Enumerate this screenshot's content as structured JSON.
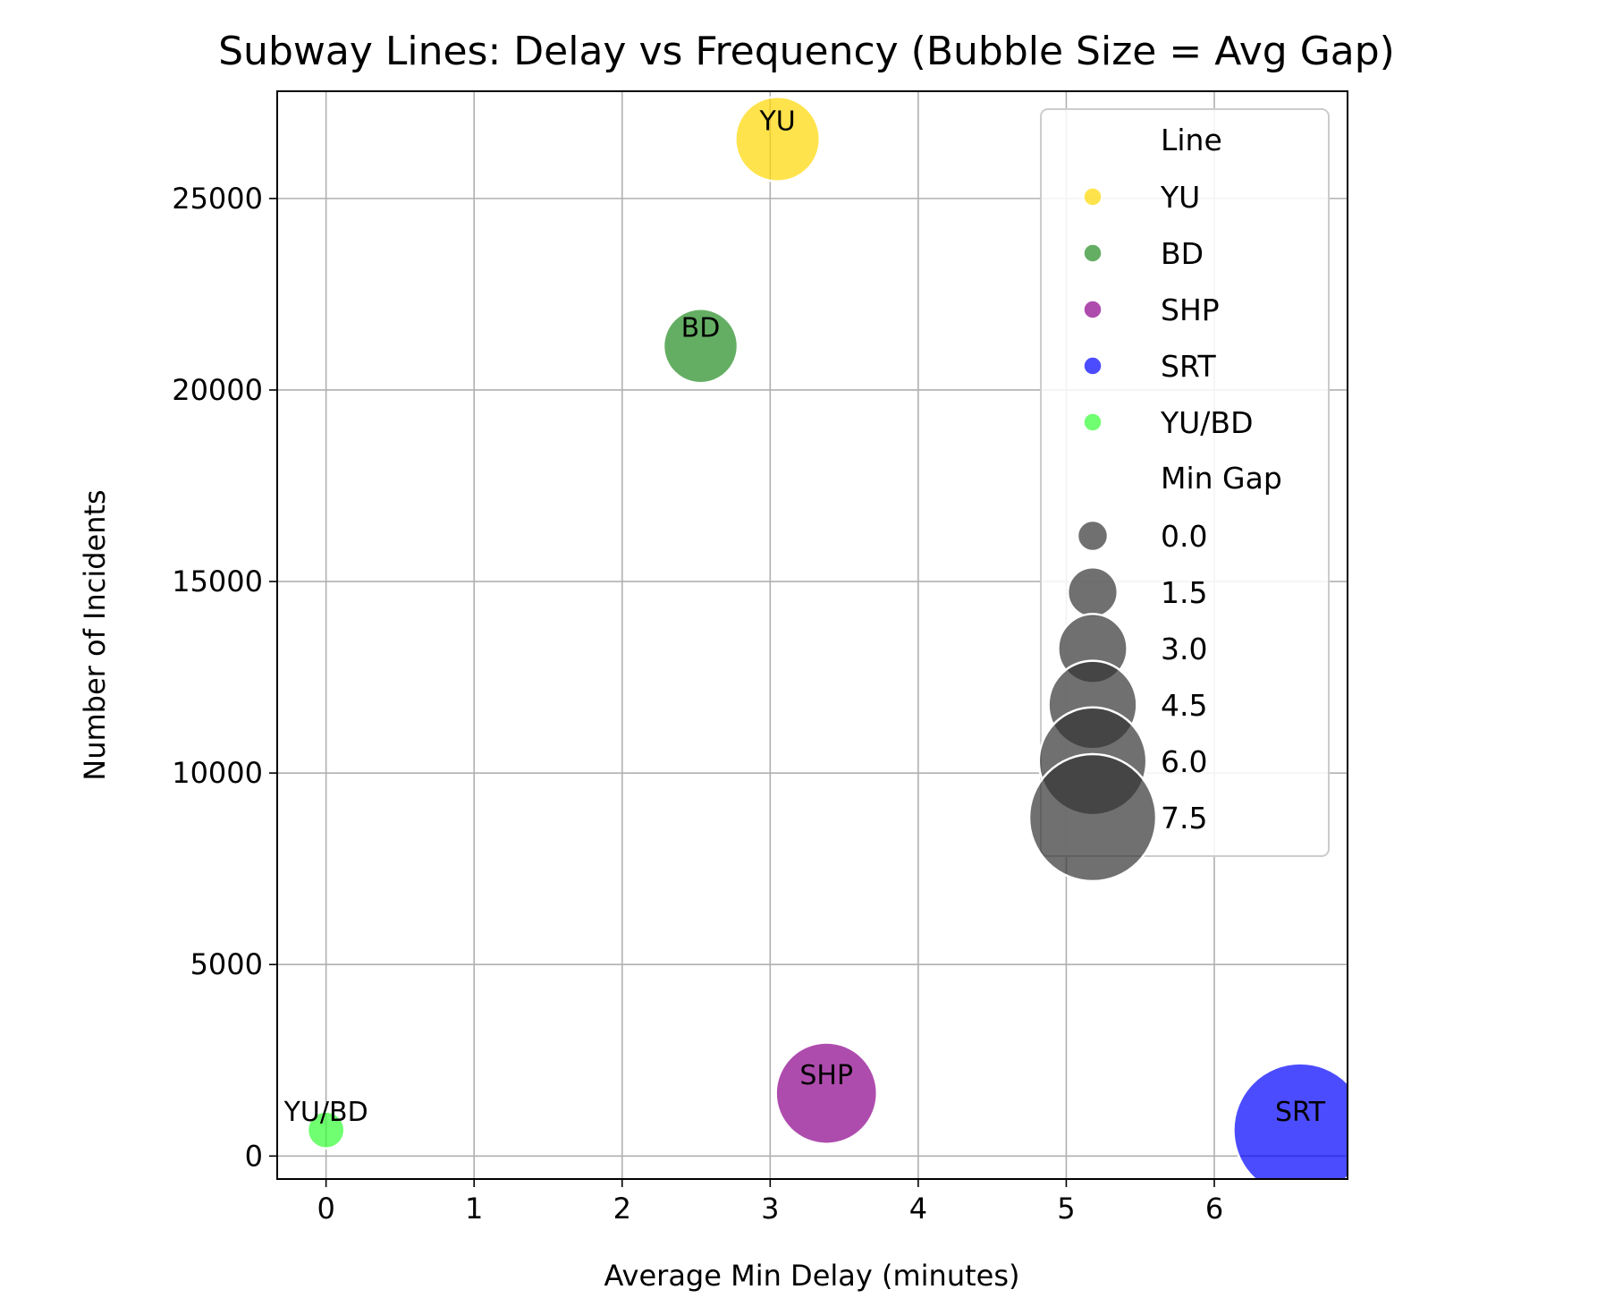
{
  "chart_data": {
    "type": "scatter",
    "title": "Subway Lines: Delay vs Frequency (Bubble Size = Avg Gap)",
    "xlabel": "Average Min Delay (minutes)",
    "ylabel": "Number of Incidents",
    "xlim": [
      -0.33,
      6.9
    ],
    "ylim": [
      -600,
      27800
    ],
    "xticks": [
      0,
      1,
      2,
      3,
      4,
      5,
      6
    ],
    "yticks": [
      0,
      5000,
      10000,
      15000,
      20000,
      25000
    ],
    "grid": true,
    "points": [
      {
        "label": "YU/BD",
        "x": 0.0,
        "y": 680,
        "gap": 0.5,
        "color": "#33ff33"
      },
      {
        "label": "BD",
        "x": 2.53,
        "y": 21150,
        "gap": 3.4,
        "color": "#228b22"
      },
      {
        "label": "YU",
        "x": 3.05,
        "y": 26550,
        "gap": 4.2,
        "color": "#ffd700"
      },
      {
        "label": "SHP",
        "x": 3.38,
        "y": 1640,
        "gap": 5.5,
        "color": "#8b008b"
      },
      {
        "label": "SRT",
        "x": 6.58,
        "y": 680,
        "gap": 8.0,
        "color": "#0000ff"
      }
    ],
    "legend": {
      "placement": "upper right",
      "color_title": "Line",
      "color_items": [
        {
          "label": "YU",
          "color": "#ffd700"
        },
        {
          "label": "BD",
          "color": "#228b22"
        },
        {
          "label": "SHP",
          "color": "#8b008b"
        },
        {
          "label": "SRT",
          "color": "#0000ff"
        },
        {
          "label": "YU/BD",
          "color": "#33ff33"
        }
      ],
      "size_title": "Min Gap",
      "size_items": [
        {
          "label": "0.0",
          "value": 0.0
        },
        {
          "label": "1.5",
          "value": 1.5
        },
        {
          "label": "3.0",
          "value": 3.0
        },
        {
          "label": "4.5",
          "value": 4.5
        },
        {
          "label": "6.0",
          "value": 6.0
        },
        {
          "label": "7.5",
          "value": 7.5
        }
      ],
      "size_color": "#333333"
    }
  }
}
